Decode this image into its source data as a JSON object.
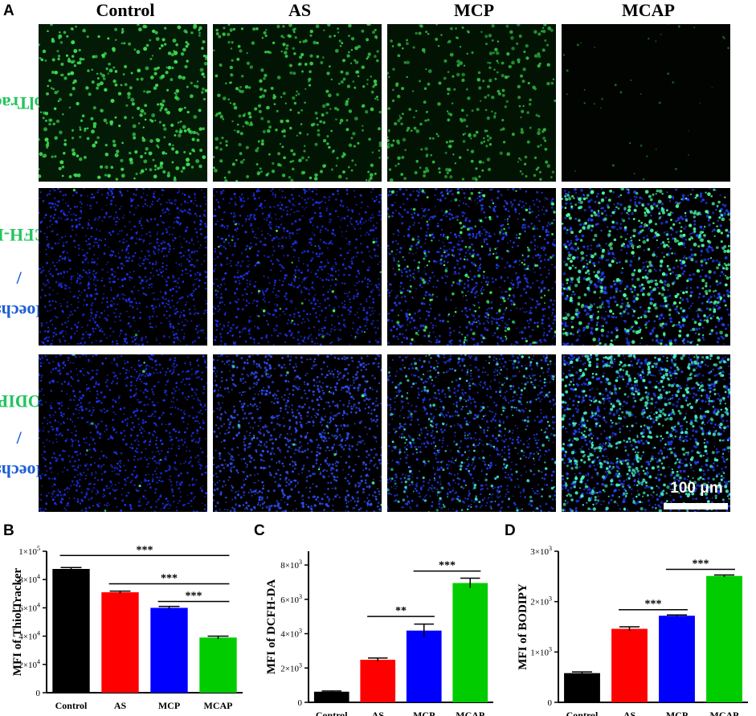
{
  "figure": {
    "panel_labels": [
      "A",
      "B",
      "C",
      "D"
    ],
    "columns": [
      "Control",
      "AS",
      "MCP",
      "MCAP"
    ],
    "rows": [
      {
        "parts": [
          {
            "text": "ThiolTracker",
            "color": "#22c55e"
          }
        ]
      },
      {
        "parts": [
          {
            "text": "Hoechst",
            "color": "#1e5fd6"
          },
          {
            "text": "/",
            "color": "#1e5fd6"
          },
          {
            "text": "DCFH-DA",
            "color": "#22c55e"
          }
        ]
      },
      {
        "parts": [
          {
            "text": "Hoechst",
            "color": "#1e5fd6"
          },
          {
            "text": "/",
            "color": "#1e5fd6"
          },
          {
            "text": "BODIPY",
            "color": "#22c55e"
          }
        ]
      }
    ],
    "scale_bar_label": "100 μm"
  },
  "chart_data": [
    {
      "type": "bar",
      "panel": "B",
      "categories": [
        "Control",
        "AS",
        "MCP",
        "MCAP"
      ],
      "values": [
        87500,
        71000,
        60000,
        39000
      ],
      "errors": [
        1000,
        800,
        1000,
        1000
      ],
      "colors": [
        "#000000",
        "#ff0000",
        "#0000ff",
        "#00cc00"
      ],
      "ylabel": "MFI of ThiolTracker",
      "ylim": [
        0,
        100000
      ],
      "yticks": [
        {
          "value": 20000,
          "mant": "2",
          "exp": "4"
        },
        {
          "value": 40000,
          "mant": "4",
          "exp": "4"
        },
        {
          "value": 60000,
          "mant": "6",
          "exp": "4"
        },
        {
          "value": 80000,
          "mant": "8",
          "exp": "4"
        },
        {
          "value": 100000,
          "mant": "1",
          "exp": "5"
        }
      ],
      "tick_prefix": "×10",
      "annotations": [
        {
          "from": 0,
          "to": 3,
          "label": "***",
          "y": 97000
        },
        {
          "from": 1,
          "to": 3,
          "label": "***",
          "y": 77000
        },
        {
          "from": 2,
          "to": 3,
          "label": "***",
          "y": 64500
        }
      ]
    },
    {
      "type": "bar",
      "panel": "C",
      "categories": [
        "Control",
        "AS",
        "MCP",
        "MCAP"
      ],
      "values": [
        620,
        2480,
        4180,
        6950
      ],
      "errors": [
        40,
        100,
        380,
        280
      ],
      "colors": [
        "#000000",
        "#ff0000",
        "#0000ff",
        "#00cc00"
      ],
      "ylabel": "MFI of DCFH-DA",
      "ylim": [
        0,
        8800
      ],
      "yticks": [
        {
          "value": 2000,
          "mant": "2",
          "exp": "3"
        },
        {
          "value": 4000,
          "mant": "4",
          "exp": "3"
        },
        {
          "value": 6000,
          "mant": "6",
          "exp": "3"
        },
        {
          "value": 8000,
          "mant": "8",
          "exp": "3"
        }
      ],
      "tick_prefix": "×10",
      "annotations": [
        {
          "from": 1,
          "to": 2,
          "label": "**",
          "y": 5000
        },
        {
          "from": 2,
          "to": 3,
          "label": "***",
          "y": 7650
        }
      ]
    },
    {
      "type": "bar",
      "panel": "D",
      "categories": [
        "Control",
        "AS",
        "MCP",
        "MCAP"
      ],
      "values": [
        580,
        1460,
        1720,
        2510
      ],
      "errors": [
        25,
        40,
        15,
        20
      ],
      "colors": [
        "#000000",
        "#ff0000",
        "#0000ff",
        "#00cc00"
      ],
      "ylabel": "MFI of BODIPY",
      "ylim": [
        0,
        3000
      ],
      "yticks": [
        {
          "value": 1000,
          "mant": "1",
          "exp": "3"
        },
        {
          "value": 2000,
          "mant": "2",
          "exp": "3"
        },
        {
          "value": 3000,
          "mant": "3",
          "exp": "3"
        }
      ],
      "tick_prefix": "×10",
      "annotations": [
        {
          "from": 1,
          "to": 2,
          "label": "***",
          "y": 1840
        },
        {
          "from": 2,
          "to": 3,
          "label": "***",
          "y": 2640
        }
      ]
    }
  ]
}
